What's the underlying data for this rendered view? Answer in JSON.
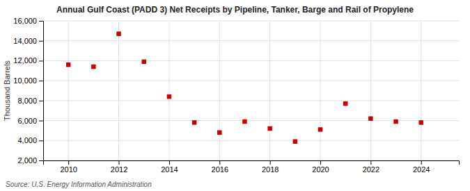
{
  "chart_data": {
    "type": "scatter",
    "title": "Annual Gulf Coast (PADD 3) Net Receipts by Pipeline, Tanker, Barge and Rail of Propylene",
    "ylabel": "Thousand Barrels",
    "annotations": [
      "Source: U.S. Energy Information Administration"
    ],
    "x": [
      2010,
      2011,
      2012,
      2013,
      2014,
      2015,
      2016,
      2017,
      2018,
      2019,
      2020,
      2021,
      2022,
      2023,
      2024
    ],
    "values": [
      11600,
      11400,
      14700,
      11900,
      8400,
      5800,
      4800,
      5900,
      5200,
      3900,
      5100,
      7700,
      6200,
      5900,
      5800
    ],
    "color": "#cc0000",
    "marker": "square",
    "xlim": [
      2009,
      2025.5
    ],
    "xticks": [
      2010,
      2012,
      2014,
      2016,
      2018,
      2020,
      2022,
      2024
    ],
    "ylim": [
      2000,
      16000
    ],
    "yticks": [
      {
        "value": 2000,
        "label": "2,000"
      },
      {
        "value": 4000,
        "label": "4,000"
      },
      {
        "value": 6000,
        "label": "6,000"
      },
      {
        "value": 8000,
        "label": "8,000"
      },
      {
        "value": 10000,
        "label": "10,000"
      },
      {
        "value": 12000,
        "label": "12,000"
      },
      {
        "value": 14000,
        "label": "14,000"
      },
      {
        "value": 16000,
        "label": "16,000"
      }
    ],
    "grid": true
  }
}
